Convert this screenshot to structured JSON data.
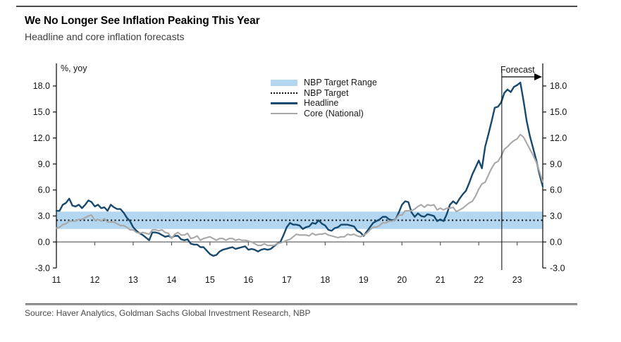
{
  "header": {
    "title": "We No Longer See Inflation Peaking This Year",
    "subtitle": "Headline and core inflation forecasts"
  },
  "source": {
    "text": "Source: Haver Analytics, Goldman Sachs Global Investment Research, NBP"
  },
  "chart_data": {
    "type": "line",
    "title": "We No Longer See Inflation Peaking This Year",
    "subtitle": "Headline and core inflation forecasts",
    "unit_label": "%, yoy",
    "grid": false,
    "legend_position": "top-center",
    "xlim": [
      11,
      23.667
    ],
    "ylim": [
      -3,
      20.6
    ],
    "x_ticks": [
      11,
      12,
      13,
      14,
      15,
      16,
      17,
      18,
      19,
      20,
      21,
      22,
      23
    ],
    "x_tick_labels": [
      "11",
      "12",
      "13",
      "14",
      "15",
      "16",
      "17",
      "18",
      "19",
      "20",
      "21",
      "22",
      "23"
    ],
    "y_ticks": [
      -3,
      0,
      3,
      6,
      9,
      12,
      15,
      18
    ],
    "y_tick_labels": [
      "-3.0",
      "0.0",
      "3.0",
      "6.0",
      "9.0",
      "12.0",
      "15.0",
      "18.0"
    ],
    "nbp_target": 2.5,
    "nbp_target_range": [
      1.5,
      3.5
    ],
    "forecast": {
      "label": "Forecast",
      "start_x": 22.6
    },
    "legend": [
      {
        "label": "NBP Target Range",
        "type": "band",
        "color": "#b3d7f0"
      },
      {
        "label": "NBP Target",
        "type": "dotted",
        "color": "#121212"
      },
      {
        "label": "Headline",
        "type": "line",
        "color": "#17496e"
      },
      {
        "label": "Core (National)",
        "type": "line",
        "color": "#a8a8a8"
      }
    ],
    "colors": {
      "target_range_band": "#b3d7f0",
      "target_line": "#121212",
      "zero_line": "#7f7f7f",
      "axis": "#1a1a1a",
      "tick_text": "#141414"
    },
    "x_start": 11.0,
    "x_step_years": 0.0833333,
    "series": [
      {
        "name": "Headline",
        "color": "#17496e",
        "width": 2.4,
        "values": [
          3.6,
          3.6,
          4.3,
          4.5,
          5.0,
          4.2,
          4.1,
          4.3,
          3.9,
          4.3,
          4.8,
          4.6,
          4.1,
          4.3,
          3.9,
          4.0,
          3.6,
          4.3,
          4.0,
          3.8,
          3.8,
          3.4,
          2.8,
          2.4,
          1.7,
          1.3,
          1.0,
          0.8,
          0.5,
          0.2,
          1.1,
          1.1,
          1.0,
          0.8,
          0.6,
          0.7,
          0.5,
          0.7,
          0.7,
          0.3,
          0.2,
          0.3,
          -0.2,
          -0.3,
          -0.3,
          -0.6,
          -0.6,
          -1.0,
          -1.4,
          -1.6,
          -1.5,
          -1.1,
          -0.9,
          -0.8,
          -0.7,
          -0.6,
          -0.8,
          -0.7,
          -0.6,
          -0.5,
          -0.9,
          -0.8,
          -0.9,
          -1.1,
          -0.9,
          -0.8,
          -0.9,
          -0.8,
          -0.5,
          -0.2,
          0.0,
          0.8,
          1.7,
          2.2,
          2.0,
          2.0,
          1.9,
          1.5,
          1.7,
          1.8,
          2.2,
          2.1,
          2.5,
          2.1,
          1.9,
          1.4,
          1.3,
          1.6,
          1.7,
          2.0,
          2.0,
          2.0,
          1.9,
          1.8,
          1.3,
          1.1,
          0.7,
          1.2,
          1.7,
          2.2,
          2.4,
          2.6,
          2.9,
          2.9,
          2.6,
          2.5,
          2.6,
          3.4,
          4.3,
          4.7,
          4.6,
          3.4,
          2.9,
          3.3,
          3.0,
          2.9,
          3.2,
          3.1,
          3.0,
          2.4,
          2.6,
          2.4,
          3.2,
          4.3,
          4.7,
          4.4,
          5.0,
          5.5,
          5.9,
          6.8,
          7.8,
          8.6,
          9.4,
          8.5,
          11.0,
          12.4,
          13.9,
          15.5,
          15.6,
          16.1,
          17.2,
          17.6,
          17.3,
          17.9,
          18.1,
          18.4,
          16.3,
          13.9,
          12.2,
          10.8,
          9.4,
          7.8,
          6.4
        ]
      },
      {
        "name": "Core (National)",
        "color": "#a8a8a8",
        "width": 2.1,
        "values": [
          1.6,
          1.7,
          2.0,
          2.1,
          2.4,
          2.4,
          2.4,
          2.6,
          2.6,
          2.8,
          3.0,
          3.1,
          2.5,
          2.6,
          2.4,
          2.7,
          2.3,
          2.3,
          2.3,
          2.1,
          1.9,
          1.9,
          1.7,
          1.4,
          1.4,
          1.1,
          1.0,
          1.1,
          1.0,
          0.9,
          1.4,
          1.4,
          1.3,
          1.4,
          1.1,
          1.0,
          0.4,
          0.9,
          1.1,
          0.8,
          0.8,
          1.0,
          0.4,
          0.5,
          0.7,
          0.2,
          0.4,
          0.5,
          0.6,
          0.4,
          0.2,
          0.4,
          0.4,
          0.2,
          0.4,
          0.4,
          0.2,
          0.3,
          0.2,
          0.2,
          0.1,
          0.0,
          -0.2,
          -0.4,
          -0.4,
          -0.2,
          -0.4,
          -0.4,
          -0.4,
          -0.2,
          -0.1,
          0.0,
          0.2,
          0.3,
          0.6,
          0.9,
          0.8,
          0.8,
          0.8,
          0.7,
          1.0,
          0.8,
          0.9,
          0.9,
          1.0,
          0.8,
          0.7,
          0.6,
          0.5,
          0.6,
          0.6,
          0.9,
          0.8,
          0.9,
          0.7,
          0.6,
          0.8,
          1.0,
          1.4,
          1.7,
          1.7,
          1.9,
          2.2,
          2.2,
          2.4,
          2.4,
          2.6,
          3.1,
          3.1,
          3.6,
          3.6,
          3.6,
          3.8,
          4.1,
          4.3,
          4.0,
          4.3,
          4.2,
          4.3,
          3.7,
          3.9,
          3.7,
          3.9,
          3.9,
          4.0,
          3.5,
          3.7,
          3.9,
          4.2,
          4.5,
          4.7,
          5.3,
          6.1,
          6.7,
          6.9,
          7.7,
          8.5,
          9.1,
          9.3,
          9.9,
          10.7,
          11.0,
          11.4,
          11.7,
          11.9,
          12.4,
          12.1,
          11.4,
          10.7,
          10.0,
          9.2,
          8.1,
          6.9
        ]
      }
    ]
  }
}
